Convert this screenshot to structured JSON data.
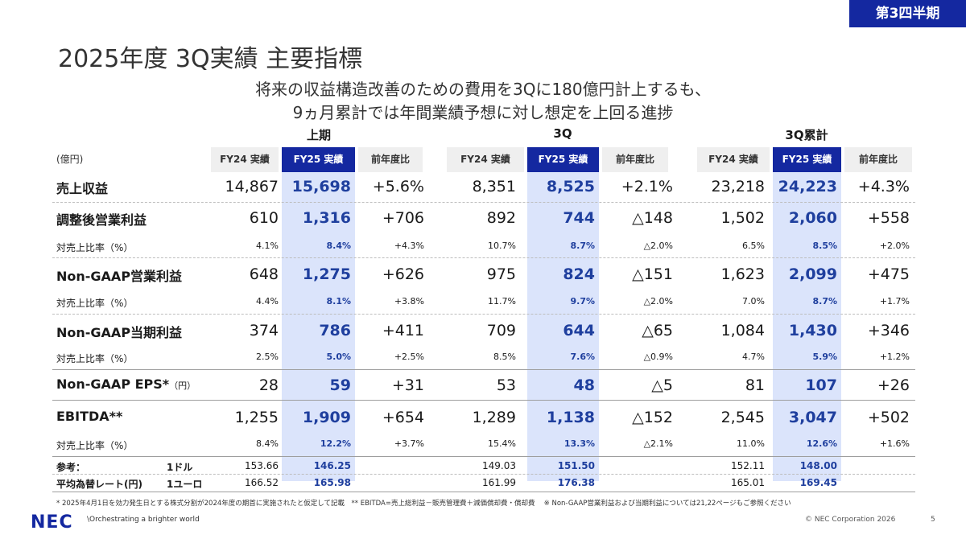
{
  "badge": "第3四半期",
  "title": "2025年度 3Q実績 主要指標",
  "subtitle_line1": "将来の収益構造改善のための費用を3Qに180億円計上するも、",
  "subtitle_line2": "9ヵ月累計では年間業績予想に対し想定を上回る進捗",
  "unit": "(億円)",
  "groups": [
    "上期",
    "3Q",
    "3Q累計"
  ],
  "col_headers": [
    "FY24 実績",
    "FY25 実績",
    "前年度比"
  ],
  "rows": [
    {
      "label": "売上収益",
      "values": [
        "14,867",
        "15,698",
        "+5.6%",
        "8,351",
        "8,525",
        "+2.1%",
        "23,218",
        "24,223",
        "+4.3%"
      ]
    },
    {
      "label": "調整後営業利益",
      "values": [
        "610",
        "1,316",
        "+706",
        "892",
        "744",
        "△148",
        "1,502",
        "2,060",
        "+558"
      ]
    },
    {
      "label": "対売上比率（%）",
      "values": [
        "4.1%",
        "8.4%",
        "+4.3%",
        "10.7%",
        "8.7%",
        "△2.0%",
        "6.5%",
        "8.5%",
        "+2.0%"
      ]
    },
    {
      "label": "Non-GAAP営業利益",
      "values": [
        "648",
        "1,275",
        "+626",
        "975",
        "824",
        "△151",
        "1,623",
        "2,099",
        "+475"
      ]
    },
    {
      "label": "対売上比率（%）",
      "values": [
        "4.4%",
        "8.1%",
        "+3.8%",
        "11.7%",
        "9.7%",
        "△2.0%",
        "7.0%",
        "8.7%",
        "+1.7%"
      ]
    },
    {
      "label": "Non-GAAP当期利益",
      "values": [
        "374",
        "786",
        "+411",
        "709",
        "644",
        "△65",
        "1,084",
        "1,430",
        "+346"
      ]
    },
    {
      "label": "対売上比率（%）",
      "values": [
        "2.5%",
        "5.0%",
        "+2.5%",
        "8.5%",
        "7.6%",
        "△0.9%",
        "4.7%",
        "5.9%",
        "+1.2%"
      ]
    },
    {
      "label": "Non-GAAP EPS*",
      "label_suffix": "（円）",
      "values": [
        "28",
        "59",
        "+31",
        "53",
        "48",
        "△5",
        "81",
        "107",
        "+26"
      ]
    },
    {
      "label": "EBITDA**",
      "values": [
        "1,255",
        "1,909",
        "+654",
        "1,289",
        "1,138",
        "△152",
        "2,545",
        "3,047",
        "+502"
      ]
    },
    {
      "label": "対売上比率（%）",
      "values": [
        "8.4%",
        "12.2%",
        "+3.7%",
        "15.4%",
        "13.3%",
        "△2.1%",
        "11.0%",
        "12.6%",
        "+1.6%"
      ]
    }
  ],
  "reference": {
    "label1": "参考：",
    "label2": "平均為替レート(円)",
    "dollar_label": "1ドル",
    "euro_label": "1ユーロ",
    "dollar": [
      "153.66",
      "146.25",
      "149.03",
      "151.50",
      "152.11",
      "148.00"
    ],
    "euro": [
      "166.52",
      "165.98",
      "161.99",
      "176.38",
      "165.01",
      "169.45"
    ]
  },
  "footnote": "* 2025年4月1日を効力発生日とする株式分割が2024年度の期首に実施されたと仮定して記載　** EBITDA=売上総利益－販売管理費＋減価償却費・償却費　 ※ Non-GAAP営業利益および当期利益については21,22ページもご参照ください",
  "logo": "NEC",
  "tagline": "\\Orchestrating a brighter world",
  "copyright": "© NEC Corporation 2026",
  "page_number": "5",
  "colors": {
    "brand": "#1428a0",
    "highlight": "#dbe4fb",
    "value_blue": "#1f3f9e"
  }
}
